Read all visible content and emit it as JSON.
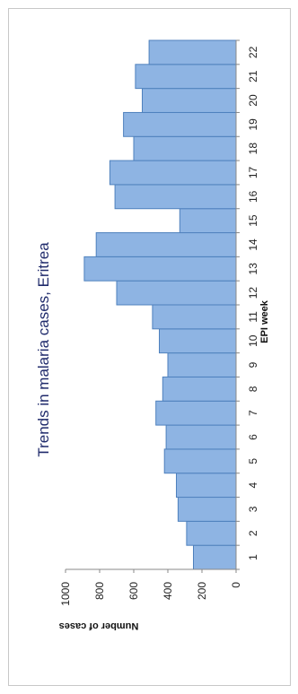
{
  "chart_data": {
    "type": "bar",
    "orientation": "rotated-90-clockwise",
    "title": "Trends in malaria cases, Eritrea",
    "xlabel": "EPI week",
    "ylabel": "Number of cases",
    "categories": [
      "1",
      "2",
      "3",
      "4",
      "5",
      "6",
      "7",
      "8",
      "9",
      "10",
      "11",
      "12",
      "13",
      "14",
      "15",
      "16",
      "17",
      "18",
      "19",
      "20",
      "21",
      "22"
    ],
    "values": [
      250,
      290,
      340,
      350,
      420,
      410,
      470,
      430,
      400,
      450,
      490,
      700,
      890,
      820,
      330,
      710,
      740,
      600,
      660,
      550,
      590,
      510
    ],
    "ylim": [
      0,
      1000
    ],
    "yticks": [
      "0",
      "200",
      "400",
      "600",
      "800",
      "1000"
    ],
    "bar_color": "#8eb4e3",
    "bar_edge_color": "#4f81bd",
    "grid": false,
    "legend": "none"
  }
}
